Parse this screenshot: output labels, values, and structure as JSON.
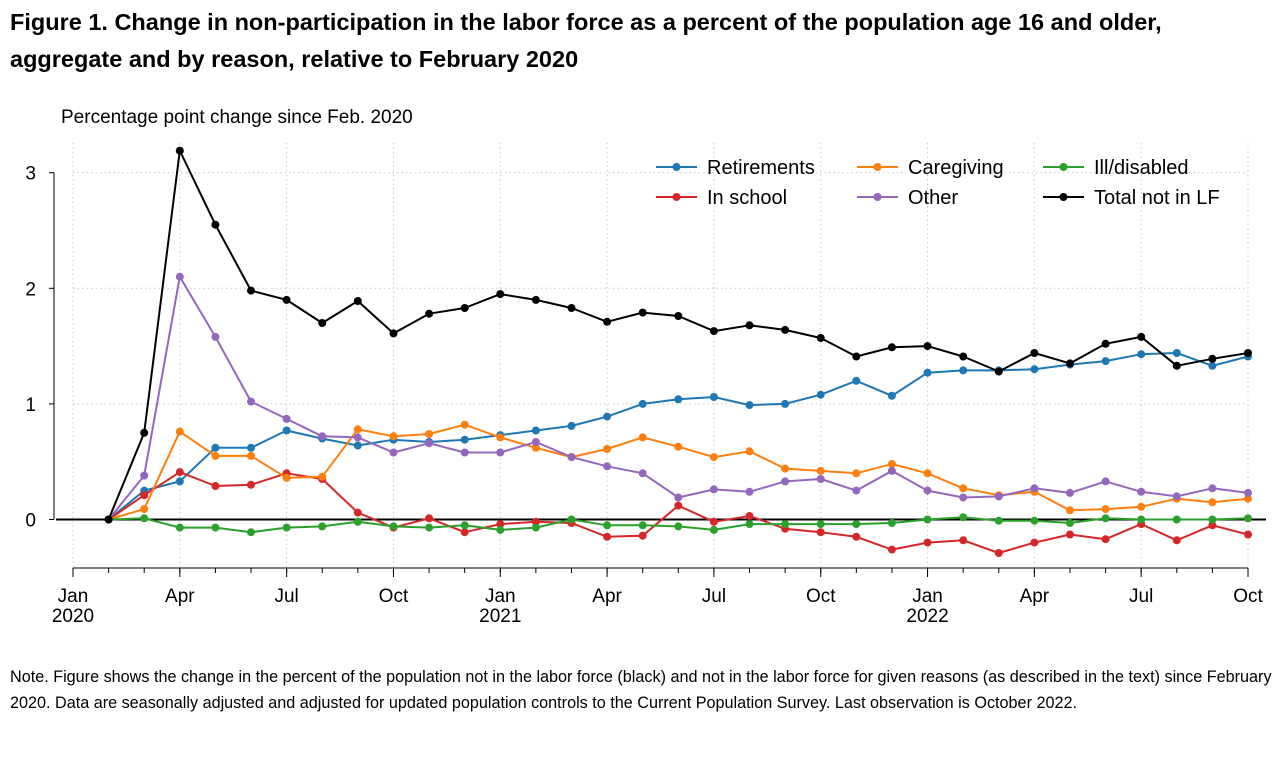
{
  "title": "Figure 1.  Change in non-participation in the labor force as a percent of the population age 16 and older, aggregate and by reason, relative to February 2020",
  "note": "Note. Figure shows the change in the percent of the population not in the labor force (black) and not in the labor force for given reasons (as described in the text) since February 2020.   Data are seasonally adjusted and adjusted for updated population controls to the Current Population Survey.  Last observation is October 2022.",
  "chart_data": {
    "type": "line",
    "ylabel": "Percentage point change since Feb. 2020",
    "xlabel": "",
    "ylim": [
      -0.45,
      3.3
    ],
    "yticks": [
      0,
      1,
      2,
      3
    ],
    "grid": "dotted, both axes",
    "legend_position": "top-right, 3 columns",
    "x": [
      "2020-02",
      "2020-03",
      "2020-04",
      "2020-05",
      "2020-06",
      "2020-07",
      "2020-08",
      "2020-09",
      "2020-10",
      "2020-11",
      "2020-12",
      "2021-01",
      "2021-02",
      "2021-03",
      "2021-04",
      "2021-05",
      "2021-06",
      "2021-07",
      "2021-08",
      "2021-09",
      "2021-10",
      "2021-11",
      "2021-12",
      "2022-01",
      "2022-02",
      "2022-03",
      "2022-04",
      "2022-05",
      "2022-06",
      "2022-07",
      "2022-08",
      "2022-09",
      "2022-10"
    ],
    "xrange": [
      "2020-01",
      "2022-10"
    ],
    "xticks": [
      {
        "date": "2020-01",
        "label": "Jan",
        "year": "2020"
      },
      {
        "date": "2020-04",
        "label": "Apr",
        "year": ""
      },
      {
        "date": "2020-07",
        "label": "Jul",
        "year": ""
      },
      {
        "date": "2020-10",
        "label": "Oct",
        "year": ""
      },
      {
        "date": "2021-01",
        "label": "Jan",
        "year": "2021"
      },
      {
        "date": "2021-04",
        "label": "Apr",
        "year": ""
      },
      {
        "date": "2021-07",
        "label": "Jul",
        "year": ""
      },
      {
        "date": "2021-10",
        "label": "Oct",
        "year": ""
      },
      {
        "date": "2022-01",
        "label": "Jan",
        "year": "2022"
      },
      {
        "date": "2022-04",
        "label": "Apr",
        "year": ""
      },
      {
        "date": "2022-07",
        "label": "Jul",
        "year": ""
      },
      {
        "date": "2022-10",
        "label": "Oct",
        "year": ""
      }
    ],
    "series": [
      {
        "name": "Retirements",
        "color": "#1f77b4",
        "values": [
          0,
          0.25,
          0.33,
          0.62,
          0.62,
          0.77,
          0.7,
          0.64,
          0.69,
          0.67,
          0.69,
          0.73,
          0.77,
          0.81,
          0.89,
          1.0,
          1.04,
          1.06,
          0.99,
          1.0,
          1.08,
          1.2,
          1.07,
          1.27,
          1.29,
          1.29,
          1.3,
          1.34,
          1.37,
          1.43,
          1.44,
          1.33,
          1.41
        ]
      },
      {
        "name": "In school",
        "color": "#d62728",
        "values": [
          0,
          0.21,
          0.41,
          0.29,
          0.3,
          0.4,
          0.35,
          0.06,
          -0.07,
          0.01,
          -0.11,
          -0.04,
          -0.02,
          -0.03,
          -0.15,
          -0.14,
          0.12,
          -0.02,
          0.03,
          -0.08,
          -0.11,
          -0.15,
          -0.26,
          -0.2,
          -0.18,
          -0.29,
          -0.2,
          -0.13,
          -0.17,
          -0.04,
          -0.18,
          -0.05,
          -0.13
        ]
      },
      {
        "name": "Caregiving",
        "color": "#ff7f0e",
        "values": [
          0,
          0.09,
          0.76,
          0.55,
          0.55,
          0.36,
          0.37,
          0.78,
          0.72,
          0.74,
          0.82,
          0.71,
          0.62,
          0.54,
          0.61,
          0.71,
          0.63,
          0.54,
          0.59,
          0.44,
          0.42,
          0.4,
          0.48,
          0.4,
          0.27,
          0.21,
          0.24,
          0.08,
          0.09,
          0.11,
          0.18,
          0.15,
          0.18
        ]
      },
      {
        "name": "Other",
        "color": "#9467bd",
        "values": [
          0,
          0.38,
          2.1,
          1.58,
          1.02,
          0.87,
          0.72,
          0.71,
          0.58,
          0.66,
          0.58,
          0.58,
          0.67,
          0.54,
          0.46,
          0.4,
          0.19,
          0.26,
          0.24,
          0.33,
          0.35,
          0.25,
          0.42,
          0.25,
          0.19,
          0.2,
          0.27,
          0.23,
          0.33,
          0.24,
          0.2,
          0.27,
          0.23
        ]
      },
      {
        "name": "Ill/disabled",
        "color": "#2ca02c",
        "values": [
          0,
          0.01,
          -0.07,
          -0.07,
          -0.11,
          -0.07,
          -0.06,
          -0.02,
          -0.06,
          -0.07,
          -0.05,
          -0.09,
          -0.07,
          0.0,
          -0.05,
          -0.05,
          -0.06,
          -0.09,
          -0.04,
          -0.04,
          -0.04,
          -0.04,
          -0.03,
          0.0,
          0.02,
          -0.01,
          -0.01,
          -0.03,
          0.01,
          0.0,
          0.0,
          0.0,
          0.01
        ]
      },
      {
        "name": "Total not in LF",
        "color": "#000000",
        "values": [
          0,
          0.75,
          3.19,
          2.55,
          1.98,
          1.9,
          1.7,
          1.89,
          1.61,
          1.78,
          1.83,
          1.95,
          1.9,
          1.83,
          1.71,
          1.79,
          1.76,
          1.63,
          1.68,
          1.64,
          1.57,
          1.41,
          1.49,
          1.5,
          1.41,
          1.28,
          1.44,
          1.35,
          1.52,
          1.58,
          1.33,
          1.39,
          1.44
        ]
      }
    ]
  }
}
